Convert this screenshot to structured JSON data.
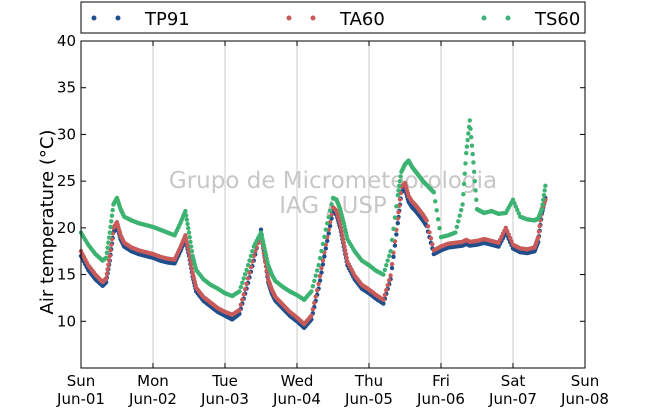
{
  "chart_data": {
    "type": "scatter",
    "title": "",
    "ylabel": "Air temperature (°C)",
    "xlabel": "",
    "ylim": [
      5,
      40
    ],
    "xlim": [
      0,
      7
    ],
    "grid": "vertical",
    "legend_position": "top",
    "watermark": [
      "Grupo de Micrometeorologia",
      "IAG / USP"
    ],
    "yticks": [
      10,
      15,
      20,
      25,
      30,
      35,
      40
    ],
    "xticks": [
      {
        "x": 0,
        "day": "Sun",
        "date": "Jun-01"
      },
      {
        "x": 1,
        "day": "Mon",
        "date": "Jun-02"
      },
      {
        "x": 2,
        "day": "Tue",
        "date": "Jun-03"
      },
      {
        "x": 3,
        "day": "Wed",
        "date": "Jun-04"
      },
      {
        "x": 4,
        "day": "Thu",
        "date": "Jun-05"
      },
      {
        "x": 5,
        "day": "Fri",
        "date": "Jun-06"
      },
      {
        "x": 6,
        "day": "Sat",
        "date": "Jun-07"
      },
      {
        "x": 7,
        "day": "Sun",
        "date": "Jun-08"
      }
    ],
    "series": [
      {
        "name": "TP91",
        "color": "#1f4e8c",
        "x": [
          0.0,
          0.1,
          0.2,
          0.3,
          0.35,
          0.4,
          0.45,
          0.5,
          0.55,
          0.6,
          0.7,
          0.8,
          0.9,
          1.0,
          1.1,
          1.2,
          1.3,
          1.38,
          1.45,
          1.5,
          1.55,
          1.6,
          1.7,
          1.8,
          1.9,
          2.0,
          2.1,
          2.2,
          2.3,
          2.4,
          2.5,
          2.55,
          2.6,
          2.65,
          2.7,
          2.8,
          2.9,
          3.0,
          3.1,
          3.2,
          3.3,
          3.4,
          3.5,
          3.55,
          3.6,
          3.65,
          3.7,
          3.8,
          3.9,
          4.0,
          4.1,
          4.2,
          4.3,
          4.4,
          4.45,
          4.5,
          4.55,
          4.6,
          4.65,
          4.7,
          4.75,
          4.8,
          4.9,
          5.0,
          5.1,
          5.2,
          5.3,
          5.35,
          5.4,
          5.5,
          5.6,
          5.7,
          5.8,
          5.9,
          6.0,
          6.1,
          6.2,
          6.3,
          6.35,
          6.4,
          6.45
        ],
        "y": [
          17.0,
          15.5,
          14.5,
          13.8,
          14.2,
          16.5,
          19.5,
          20.2,
          18.8,
          18.0,
          17.5,
          17.2,
          17.0,
          16.8,
          16.5,
          16.3,
          16.2,
          17.5,
          18.8,
          17.0,
          14.8,
          13.2,
          12.2,
          11.6,
          11.0,
          10.6,
          10.2,
          10.8,
          13.5,
          16.5,
          19.8,
          17.0,
          14.2,
          13.0,
          12.2,
          11.4,
          10.6,
          10.0,
          9.3,
          10.2,
          13.5,
          17.8,
          21.8,
          21.4,
          20.0,
          18.0,
          16.0,
          14.5,
          13.5,
          13.0,
          12.4,
          11.9,
          14.5,
          20.5,
          23.8,
          24.2,
          22.8,
          22.2,
          21.8,
          21.3,
          20.8,
          20.2,
          17.2,
          17.6,
          17.9,
          18.0,
          18.1,
          18.3,
          18.1,
          18.2,
          18.4,
          18.2,
          18.0,
          19.5,
          17.8,
          17.4,
          17.3,
          17.5,
          18.5,
          21.5,
          23.2
        ]
      },
      {
        "name": "TA60",
        "color": "#c85a5a",
        "x": [
          0.0,
          0.1,
          0.2,
          0.3,
          0.35,
          0.4,
          0.45,
          0.5,
          0.55,
          0.6,
          0.7,
          0.8,
          0.9,
          1.0,
          1.1,
          1.2,
          1.3,
          1.38,
          1.45,
          1.5,
          1.55,
          1.6,
          1.7,
          1.8,
          1.9,
          2.0,
          2.1,
          2.2,
          2.3,
          2.4,
          2.5,
          2.55,
          2.6,
          2.65,
          2.7,
          2.8,
          2.9,
          3.0,
          3.1,
          3.2,
          3.3,
          3.4,
          3.5,
          3.55,
          3.6,
          3.65,
          3.7,
          3.8,
          3.9,
          4.0,
          4.1,
          4.2,
          4.3,
          4.4,
          4.45,
          4.5,
          4.55,
          4.6,
          4.65,
          4.7,
          4.75,
          4.8,
          4.9,
          5.0,
          5.1,
          5.2,
          5.3,
          5.35,
          5.4,
          5.5,
          5.6,
          5.7,
          5.8,
          5.9,
          6.0,
          6.1,
          6.2,
          6.3,
          6.35,
          6.4,
          6.45
        ],
        "y": [
          17.5,
          16.0,
          15.0,
          14.2,
          14.6,
          17.0,
          20.0,
          20.6,
          19.2,
          18.4,
          17.9,
          17.6,
          17.4,
          17.2,
          16.9,
          16.7,
          16.6,
          17.9,
          19.2,
          17.4,
          15.2,
          13.6,
          12.6,
          12.0,
          11.4,
          11.0,
          10.7,
          11.2,
          14.0,
          17.0,
          19.3,
          16.8,
          14.5,
          13.4,
          12.6,
          11.8,
          11.0,
          10.4,
          9.7,
          10.6,
          14.0,
          18.2,
          22.2,
          21.8,
          20.4,
          18.4,
          16.4,
          14.9,
          13.9,
          13.4,
          12.8,
          12.3,
          14.9,
          21.0,
          24.4,
          24.8,
          23.4,
          22.8,
          22.4,
          21.9,
          21.4,
          20.8,
          17.6,
          18.0,
          18.3,
          18.4,
          18.5,
          18.7,
          18.5,
          18.6,
          18.8,
          18.6,
          18.4,
          20.0,
          18.2,
          17.8,
          17.7,
          17.9,
          19.0,
          22.0,
          23.0
        ]
      },
      {
        "name": "TS60",
        "color": "#3cb371",
        "x": [
          0.0,
          0.1,
          0.2,
          0.3,
          0.35,
          0.4,
          0.45,
          0.5,
          0.55,
          0.6,
          0.7,
          0.8,
          0.9,
          1.0,
          1.1,
          1.2,
          1.3,
          1.38,
          1.45,
          1.5,
          1.55,
          1.6,
          1.7,
          1.8,
          1.9,
          2.0,
          2.1,
          2.2,
          2.3,
          2.4,
          2.5,
          2.55,
          2.6,
          2.65,
          2.7,
          2.8,
          2.9,
          3.0,
          3.1,
          3.2,
          3.3,
          3.4,
          3.5,
          3.55,
          3.6,
          3.65,
          3.7,
          3.8,
          3.9,
          4.0,
          4.1,
          4.2,
          4.3,
          4.4,
          4.45,
          4.5,
          4.55,
          4.6,
          4.65,
          4.7,
          4.75,
          4.8,
          4.85,
          4.9,
          5.0,
          5.1,
          5.2,
          5.3,
          5.35,
          5.4,
          5.45,
          5.5,
          5.55,
          5.6,
          5.7,
          5.8,
          5.9,
          6.0,
          6.1,
          6.2,
          6.3,
          6.35,
          6.4,
          6.45
        ],
        "y": [
          19.5,
          18.2,
          17.2,
          16.5,
          16.8,
          19.5,
          22.5,
          23.2,
          22.0,
          21.2,
          20.8,
          20.5,
          20.3,
          20.1,
          19.8,
          19.5,
          19.2,
          20.5,
          21.8,
          19.5,
          17.0,
          15.5,
          14.5,
          13.9,
          13.5,
          13.0,
          12.7,
          13.2,
          15.5,
          18.0,
          19.5,
          17.8,
          16.0,
          15.0,
          14.3,
          13.7,
          13.2,
          12.8,
          12.3,
          13.2,
          16.0,
          19.8,
          23.2,
          23.0,
          22.0,
          20.5,
          18.8,
          17.5,
          16.5,
          16.0,
          15.4,
          15.0,
          17.5,
          23.5,
          26.0,
          26.8,
          27.2,
          26.5,
          26.0,
          25.5,
          25.0,
          24.6,
          24.2,
          23.8,
          19.0,
          19.2,
          19.5,
          22.5,
          28.0,
          31.5,
          27.0,
          22.0,
          21.8,
          21.6,
          21.8,
          21.5,
          21.6,
          23.0,
          21.2,
          20.9,
          20.8,
          21.0,
          22.0,
          24.5
        ]
      }
    ]
  }
}
